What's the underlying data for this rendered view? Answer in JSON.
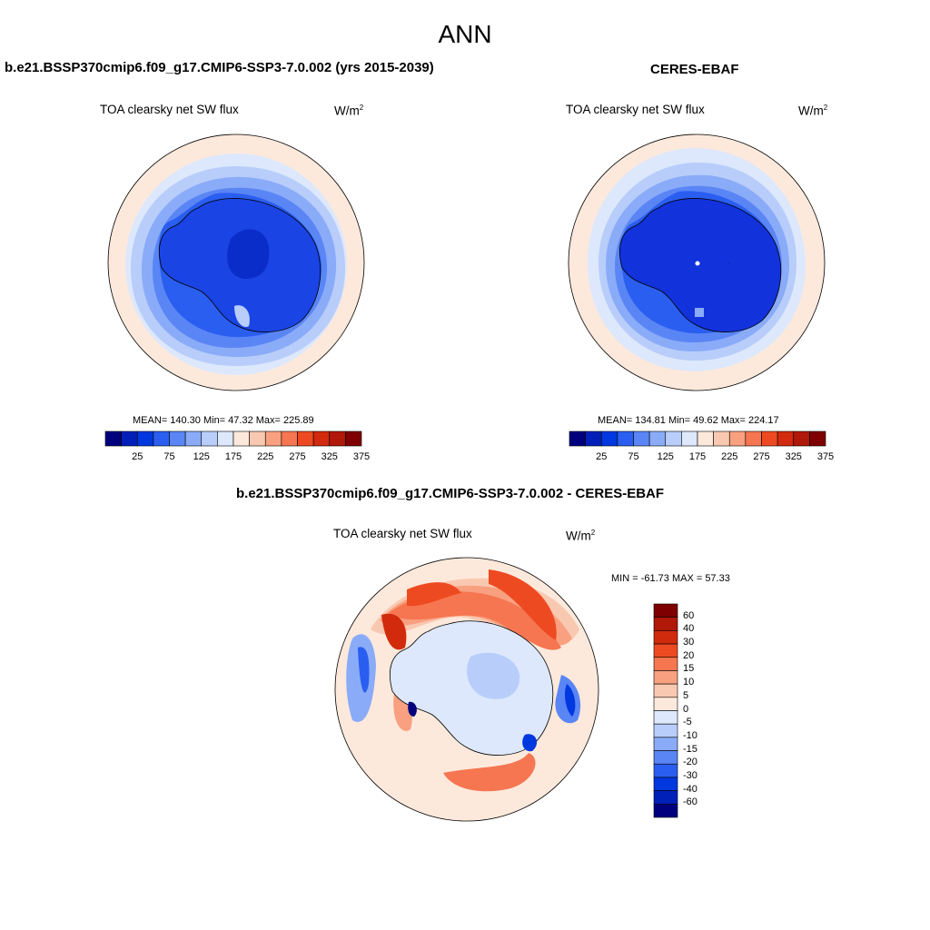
{
  "figure": {
    "title": "ANN"
  },
  "panels": [
    {
      "title": "b.e21.BSSP370cmip6.f09_g17.CMIP6-SSP3-7.0.002 (yrs 2015-2039)",
      "variable": "TOA clearsky net SW flux",
      "units_base": "W/m",
      "units_exp": "2",
      "stats": "MEAN= 140.30  Min=  47.32  Max= 225.89"
    },
    {
      "title": "CERES-EBAF",
      "variable": "TOA clearsky net SW flux",
      "units_base": "W/m",
      "units_exp": "2",
      "stats": "MEAN= 134.81  Min=  49.62  Max= 224.17"
    },
    {
      "title": "b.e21.BSSP370cmip6.f09_g17.CMIP6-SSP3-7.0.002 - CERES-EBAF",
      "variable": "TOA clearsky net SW flux",
      "units_base": "W/m",
      "units_exp": "2",
      "stats": "MIN = -61.73 MAX =  57.33"
    }
  ],
  "colorbar_abs": {
    "colors": [
      "#00007f",
      "#0020b8",
      "#0038e0",
      "#2a5ef0",
      "#5a85f5",
      "#8aabf8",
      "#b8cdfa",
      "#dde8fc",
      "#fde9dc",
      "#f9c8b0",
      "#f8a080",
      "#f57650",
      "#ee4a22",
      "#d22a0c",
      "#b01808",
      "#7f0000"
    ],
    "labels": [
      "25",
      "75",
      "125",
      "175",
      "225",
      "275",
      "325",
      "375"
    ]
  },
  "colorbar_diff": {
    "colors": [
      "#7f0000",
      "#b01808",
      "#d02a0c",
      "#ee4a22",
      "#f57650",
      "#f8a080",
      "#f9c8b0",
      "#fde9dc",
      "#dde8fc",
      "#b8cdfa",
      "#8aabf8",
      "#5a85f5",
      "#2a5ef0",
      "#0038e0",
      "#0020b8",
      "#00007f"
    ],
    "labels": [
      "60",
      "40",
      "30",
      "20",
      "15",
      "10",
      "5",
      "0",
      "-5",
      "-10",
      "-15",
      "-20",
      "-30",
      "-40",
      "-60"
    ]
  },
  "legend_levels": {
    "absolute": [
      0,
      25,
      50,
      75,
      100,
      125,
      150,
      175,
      200,
      225,
      250,
      275,
      300,
      325,
      350,
      375,
      400
    ],
    "difference": [
      -60,
      -40,
      -30,
      -20,
      -15,
      -10,
      -5,
      0,
      5,
      10,
      15,
      20,
      30,
      40,
      60
    ]
  }
}
